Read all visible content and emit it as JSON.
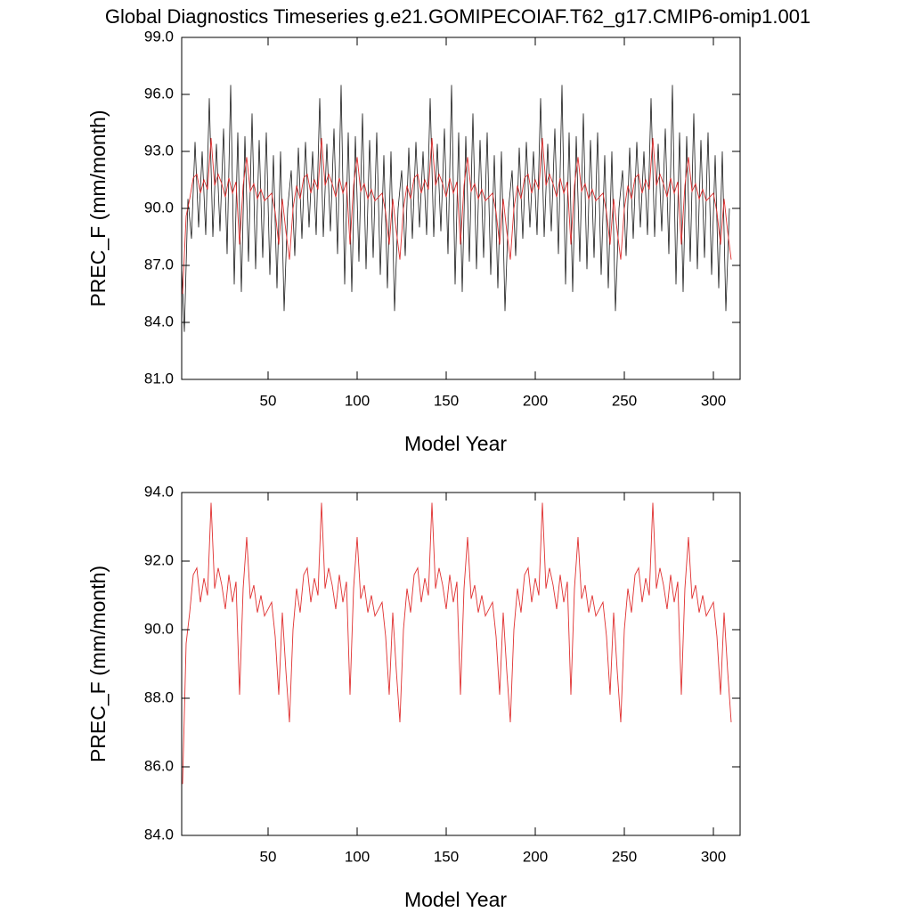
{
  "chart_data": [
    {
      "type": "line",
      "title": "Global Diagnostics Timeseries g.e21.GOMIPECOIAF.T62_g17.CMIP6-omip1.001",
      "x_label": "Model Year",
      "y_label": "PREC_F (mm/month)",
      "xlim": [
        1.5,
        315
      ],
      "xticks": [
        50,
        100,
        150,
        200,
        250,
        300
      ],
      "ylim": [
        81,
        99
      ],
      "yticks": [
        {
          "value": 81,
          "label": "81.0"
        },
        {
          "value": 84,
          "label": "84.0"
        },
        {
          "value": 87,
          "label": "87.0"
        },
        {
          "value": 90,
          "label": "90.0"
        },
        {
          "value": 93,
          "label": "93.0"
        },
        {
          "value": 96,
          "label": "96.0"
        },
        {
          "value": 99,
          "label": "99.0"
        }
      ],
      "series": [
        {
          "color": "#1a1a1a",
          "x": [
            1,
            3,
            5,
            7,
            9,
            11,
            13,
            15,
            17,
            19,
            21,
            23,
            25,
            27,
            29,
            31,
            33,
            35,
            37,
            39,
            41,
            43,
            45,
            47,
            49,
            51,
            53,
            55,
            57,
            59,
            61,
            63,
            65,
            67,
            69,
            71,
            73,
            75,
            77,
            79,
            81,
            83,
            85,
            87,
            89,
            91,
            93,
            95,
            97,
            99,
            101,
            103,
            105,
            107,
            109,
            111,
            113,
            115,
            117,
            119,
            121,
            123,
            125,
            127,
            129,
            131,
            133,
            135,
            137,
            139,
            141,
            143,
            145,
            147,
            149,
            151,
            153,
            155,
            157,
            159,
            161,
            163,
            165,
            167,
            169,
            171,
            173,
            175,
            177,
            179,
            181,
            183,
            185,
            187,
            189,
            191,
            193,
            195,
            197,
            199,
            201,
            203,
            205,
            207,
            209,
            211,
            213,
            215,
            217,
            219,
            221,
            223,
            225,
            227,
            229,
            231,
            233,
            235,
            237,
            239,
            241,
            243,
            245,
            247,
            249,
            251,
            253,
            255,
            257,
            259,
            261,
            263,
            265,
            267,
            269,
            271,
            273,
            275,
            277,
            279,
            281,
            283,
            285,
            287,
            289,
            291,
            293,
            295,
            297,
            299,
            301,
            303,
            305,
            307,
            309
          ],
          "values": [
            88.0,
            83.5,
            90.5,
            88.4,
            93.5,
            89.0,
            93.0,
            88.6,
            95.8,
            88.5,
            93.4,
            88.8,
            94.2,
            87.6,
            96.5,
            86.0,
            94.0,
            85.6,
            93.8,
            87.2,
            95.0,
            86.8,
            93.6,
            87.4,
            94.0,
            86.5,
            92.8,
            85.8,
            93.0,
            84.6,
            90.0,
            92.0,
            87.5,
            93.2,
            88.4,
            93.5,
            89.0,
            93.0,
            88.6,
            95.8,
            88.5,
            93.4,
            88.8,
            94.2,
            87.6,
            96.5,
            86.0,
            94.0,
            85.6,
            93.8,
            87.2,
            95.0,
            86.8,
            93.6,
            87.4,
            94.0,
            86.5,
            92.8,
            85.8,
            93.0,
            84.6,
            90.0,
            92.0,
            87.5,
            93.2,
            88.4,
            93.5,
            89.0,
            93.0,
            88.6,
            95.8,
            88.5,
            93.4,
            88.8,
            94.2,
            87.6,
            96.5,
            86.0,
            94.0,
            85.6,
            93.8,
            87.2,
            95.0,
            86.8,
            93.6,
            87.4,
            94.0,
            86.5,
            92.8,
            85.8,
            93.0,
            84.6,
            90.0,
            92.0,
            87.5,
            93.2,
            88.4,
            93.5,
            89.0,
            93.0,
            88.6,
            95.8,
            88.5,
            93.4,
            88.8,
            94.2,
            87.6,
            96.5,
            86.0,
            94.0,
            85.6,
            93.8,
            87.2,
            95.0,
            86.8,
            93.6,
            87.4,
            94.0,
            86.5,
            92.8,
            85.8,
            93.0,
            84.6,
            90.0,
            92.0,
            87.5,
            93.2,
            88.4,
            93.5,
            89.0,
            93.0,
            88.6,
            95.8,
            88.5,
            93.4,
            88.8,
            94.2,
            87.6,
            96.5,
            86.0,
            94.0,
            85.6,
            93.8,
            87.2,
            95.0,
            86.8,
            93.6,
            87.4,
            94.0,
            86.5,
            92.8,
            85.8,
            93.0,
            84.6,
            90.0
          ]
        },
        {
          "color": "#e03030",
          "x": [
            2,
            4,
            6,
            8,
            10,
            12,
            14,
            16,
            18,
            20,
            22,
            24,
            26,
            28,
            30,
            32,
            34,
            36,
            38,
            40,
            42,
            44,
            46,
            48,
            50,
            52,
            54,
            56,
            58,
            60,
            62,
            64,
            66,
            68,
            70,
            72,
            74,
            76,
            78,
            80,
            82,
            84,
            86,
            88,
            90,
            92,
            94,
            96,
            98,
            100,
            102,
            104,
            106,
            108,
            110,
            112,
            114,
            116,
            118,
            120,
            122,
            124,
            126,
            128,
            130,
            132,
            134,
            136,
            138,
            140,
            142,
            144,
            146,
            148,
            150,
            152,
            154,
            156,
            158,
            160,
            162,
            164,
            166,
            168,
            170,
            172,
            174,
            176,
            178,
            180,
            182,
            184,
            186,
            188,
            190,
            192,
            194,
            196,
            198,
            200,
            202,
            204,
            206,
            208,
            210,
            212,
            214,
            216,
            218,
            220,
            222,
            224,
            226,
            228,
            230,
            232,
            234,
            236,
            238,
            240,
            242,
            244,
            246,
            248,
            250,
            252,
            254,
            256,
            258,
            260,
            262,
            264,
            266,
            268,
            270,
            272,
            274,
            276,
            278,
            280,
            282,
            284,
            286,
            288,
            290,
            292,
            294,
            296,
            298,
            300,
            302,
            304,
            306,
            308,
            310
          ],
          "values": [
            85.5,
            89.6,
            90.5,
            91.6,
            91.8,
            90.8,
            91.5,
            91.0,
            93.7,
            91.2,
            91.8,
            91.3,
            90.6,
            91.6,
            90.8,
            91.4,
            88.1,
            91.2,
            92.7,
            90.9,
            91.3,
            90.5,
            91.0,
            90.4,
            90.6,
            90.8,
            89.8,
            88.1,
            90.5,
            88.8,
            87.3,
            90.0,
            91.2,
            90.5,
            91.6,
            91.8,
            90.8,
            91.5,
            91.0,
            93.7,
            91.2,
            91.8,
            91.3,
            90.6,
            91.6,
            90.8,
            91.4,
            88.1,
            91.2,
            92.7,
            90.9,
            91.3,
            90.5,
            91.0,
            90.4,
            90.6,
            90.8,
            89.8,
            88.1,
            90.5,
            88.8,
            87.3,
            90.0,
            91.2,
            90.5,
            91.6,
            91.8,
            90.8,
            91.5,
            91.0,
            93.7,
            91.2,
            91.8,
            91.3,
            90.6,
            91.6,
            90.8,
            91.4,
            88.1,
            91.2,
            92.7,
            90.9,
            91.3,
            90.5,
            91.0,
            90.4,
            90.6,
            90.8,
            89.8,
            88.1,
            90.5,
            88.8,
            87.3,
            90.0,
            91.2,
            90.5,
            91.6,
            91.8,
            90.8,
            91.5,
            91.0,
            93.7,
            91.2,
            91.8,
            91.3,
            90.6,
            91.6,
            90.8,
            91.4,
            88.1,
            91.2,
            92.7,
            90.9,
            91.3,
            90.5,
            91.0,
            90.4,
            90.6,
            90.8,
            89.8,
            88.1,
            90.5,
            88.8,
            87.3,
            90.0,
            91.2,
            90.5,
            91.6,
            91.8,
            90.8,
            91.5,
            91.0,
            93.7,
            91.2,
            91.8,
            91.3,
            90.6,
            91.6,
            90.8,
            91.4,
            88.1,
            91.2,
            92.7,
            90.9,
            91.3,
            90.5,
            91.0,
            90.4,
            90.6,
            90.8,
            89.8,
            88.1,
            90.5,
            88.8,
            87.3
          ]
        }
      ]
    },
    {
      "type": "line",
      "x_label": "Model Year",
      "y_label": "PREC_F (mm/month)",
      "xlim": [
        1.5,
        315
      ],
      "xticks": [
        50,
        100,
        150,
        200,
        250,
        300
      ],
      "ylim": [
        84,
        94
      ],
      "yticks": [
        {
          "value": 84,
          "label": "84.0"
        },
        {
          "value": 86,
          "label": "86.0"
        },
        {
          "value": 88,
          "label": "88.0"
        },
        {
          "value": 90,
          "label": "90.0"
        },
        {
          "value": 92,
          "label": "92.0"
        },
        {
          "value": 94,
          "label": "94.0"
        }
      ],
      "series": [
        {
          "color": "#e03030",
          "x": [
            2,
            4,
            6,
            8,
            10,
            12,
            14,
            16,
            18,
            20,
            22,
            24,
            26,
            28,
            30,
            32,
            34,
            36,
            38,
            40,
            42,
            44,
            46,
            48,
            50,
            52,
            54,
            56,
            58,
            60,
            62,
            64,
            66,
            68,
            70,
            72,
            74,
            76,
            78,
            80,
            82,
            84,
            86,
            88,
            90,
            92,
            94,
            96,
            98,
            100,
            102,
            104,
            106,
            108,
            110,
            112,
            114,
            116,
            118,
            120,
            122,
            124,
            126,
            128,
            130,
            132,
            134,
            136,
            138,
            140,
            142,
            144,
            146,
            148,
            150,
            152,
            154,
            156,
            158,
            160,
            162,
            164,
            166,
            168,
            170,
            172,
            174,
            176,
            178,
            180,
            182,
            184,
            186,
            188,
            190,
            192,
            194,
            196,
            198,
            200,
            202,
            204,
            206,
            208,
            210,
            212,
            214,
            216,
            218,
            220,
            222,
            224,
            226,
            228,
            230,
            232,
            234,
            236,
            238,
            240,
            242,
            244,
            246,
            248,
            250,
            252,
            254,
            256,
            258,
            260,
            262,
            264,
            266,
            268,
            270,
            272,
            274,
            276,
            278,
            280,
            282,
            284,
            286,
            288,
            290,
            292,
            294,
            296,
            298,
            300,
            302,
            304,
            306,
            308,
            310
          ],
          "values": [
            85.5,
            89.6,
            90.5,
            91.6,
            91.8,
            90.8,
            91.5,
            91.0,
            93.7,
            91.2,
            91.8,
            91.3,
            90.6,
            91.6,
            90.8,
            91.4,
            88.1,
            91.2,
            92.7,
            90.9,
            91.3,
            90.5,
            91.0,
            90.4,
            90.6,
            90.8,
            89.8,
            88.1,
            90.5,
            88.8,
            87.3,
            90.0,
            91.2,
            90.5,
            91.6,
            91.8,
            90.8,
            91.5,
            91.0,
            93.7,
            91.2,
            91.8,
            91.3,
            90.6,
            91.6,
            90.8,
            91.4,
            88.1,
            91.2,
            92.7,
            90.9,
            91.3,
            90.5,
            91.0,
            90.4,
            90.6,
            90.8,
            89.8,
            88.1,
            90.5,
            88.8,
            87.3,
            90.0,
            91.2,
            90.5,
            91.6,
            91.8,
            90.8,
            91.5,
            91.0,
            93.7,
            91.2,
            91.8,
            91.3,
            90.6,
            91.6,
            90.8,
            91.4,
            88.1,
            91.2,
            92.7,
            90.9,
            91.3,
            90.5,
            91.0,
            90.4,
            90.6,
            90.8,
            89.8,
            88.1,
            90.5,
            88.8,
            87.3,
            90.0,
            91.2,
            90.5,
            91.6,
            91.8,
            90.8,
            91.5,
            91.0,
            93.7,
            91.2,
            91.8,
            91.3,
            90.6,
            91.6,
            90.8,
            91.4,
            88.1,
            91.2,
            92.7,
            90.9,
            91.3,
            90.5,
            91.0,
            90.4,
            90.6,
            90.8,
            89.8,
            88.1,
            90.5,
            88.8,
            87.3,
            90.0,
            91.2,
            90.5,
            91.6,
            91.8,
            90.8,
            91.5,
            91.0,
            93.7,
            91.2,
            91.8,
            91.3,
            90.6,
            91.6,
            90.8,
            91.4,
            88.1,
            91.2,
            92.7,
            90.9,
            91.3,
            90.5,
            91.0,
            90.4,
            90.6,
            90.8,
            89.8,
            88.1,
            90.5,
            88.8,
            87.3
          ]
        }
      ]
    }
  ]
}
